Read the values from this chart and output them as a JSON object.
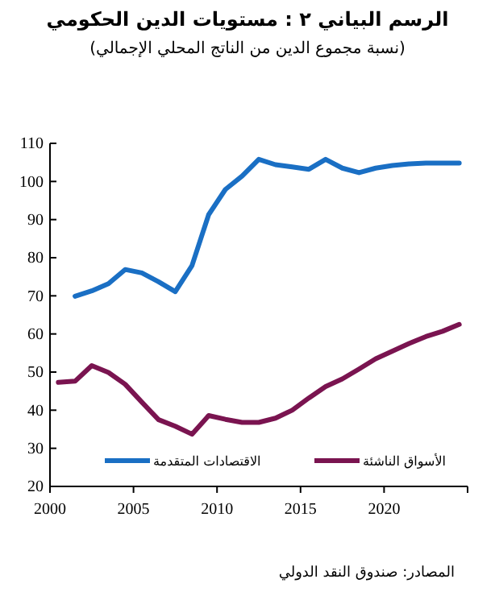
{
  "chart_data": {
    "type": "line",
    "title": "الرسم البياني ٢ : مستويات الدين الحكومي",
    "subtitle": "(نسبة مجموع الدين من الناتج المحلي الإجمالي)",
    "annotations": [
      "المصادر: صندوق النقد الدولي"
    ],
    "xlim": [
      2000,
      2025
    ],
    "xticks": [
      2000,
      2005,
      2010,
      2015,
      2020,
      {
        "value": 2025,
        "label": null
      }
    ],
    "ylim": [
      20,
      110
    ],
    "yticks": [
      20,
      30,
      40,
      50,
      60,
      70,
      80,
      90,
      100,
      110
    ],
    "grid": false,
    "legend": "bottom",
    "series": [
      {
        "name": "الاقتصادات المتقدمة",
        "color": "#1a6fc4",
        "x": [
          2001.5,
          2002.5,
          2003.5,
          2004.5,
          2005.5,
          2006.5,
          2007.5,
          2008.5,
          2009.5,
          2010.5,
          2011.5,
          2012.5,
          2013.5,
          2014.5,
          2015.5,
          2016.5,
          2017.5,
          2018.5,
          2019.5,
          2020.5,
          2021.5,
          2022.5,
          2023.5,
          2024.5
        ],
        "values": [
          69.9,
          71.3,
          73.2,
          76.9,
          76.0,
          73.7,
          71.1,
          77.9,
          91.3,
          97.9,
          101.4,
          105.8,
          104.4,
          103.8,
          103.2,
          105.8,
          103.5,
          102.3,
          103.5,
          104.2,
          104.6,
          104.8,
          104.8,
          104.8
        ]
      },
      {
        "name": "الأسواق الناشئة",
        "color": "#7a1450",
        "x": [
          2000.5,
          2001.5,
          2002.5,
          2003.5,
          2004.5,
          2005.5,
          2006.5,
          2007.5,
          2008.5,
          2009.5,
          2010.5,
          2011.5,
          2012.5,
          2013.5,
          2014.5,
          2015.5,
          2016.5,
          2017.5,
          2018.5,
          2019.5,
          2020.5,
          2021.5,
          2022.5,
          2023.5,
          2024.5
        ],
        "values": [
          47.3,
          47.6,
          51.7,
          49.9,
          46.8,
          42.1,
          37.5,
          35.8,
          33.7,
          38.6,
          37.6,
          36.8,
          36.8,
          37.9,
          40.0,
          43.2,
          46.2,
          48.2,
          50.8,
          53.5,
          55.5,
          57.5,
          59.3,
          60.7,
          62.5
        ]
      }
    ]
  }
}
